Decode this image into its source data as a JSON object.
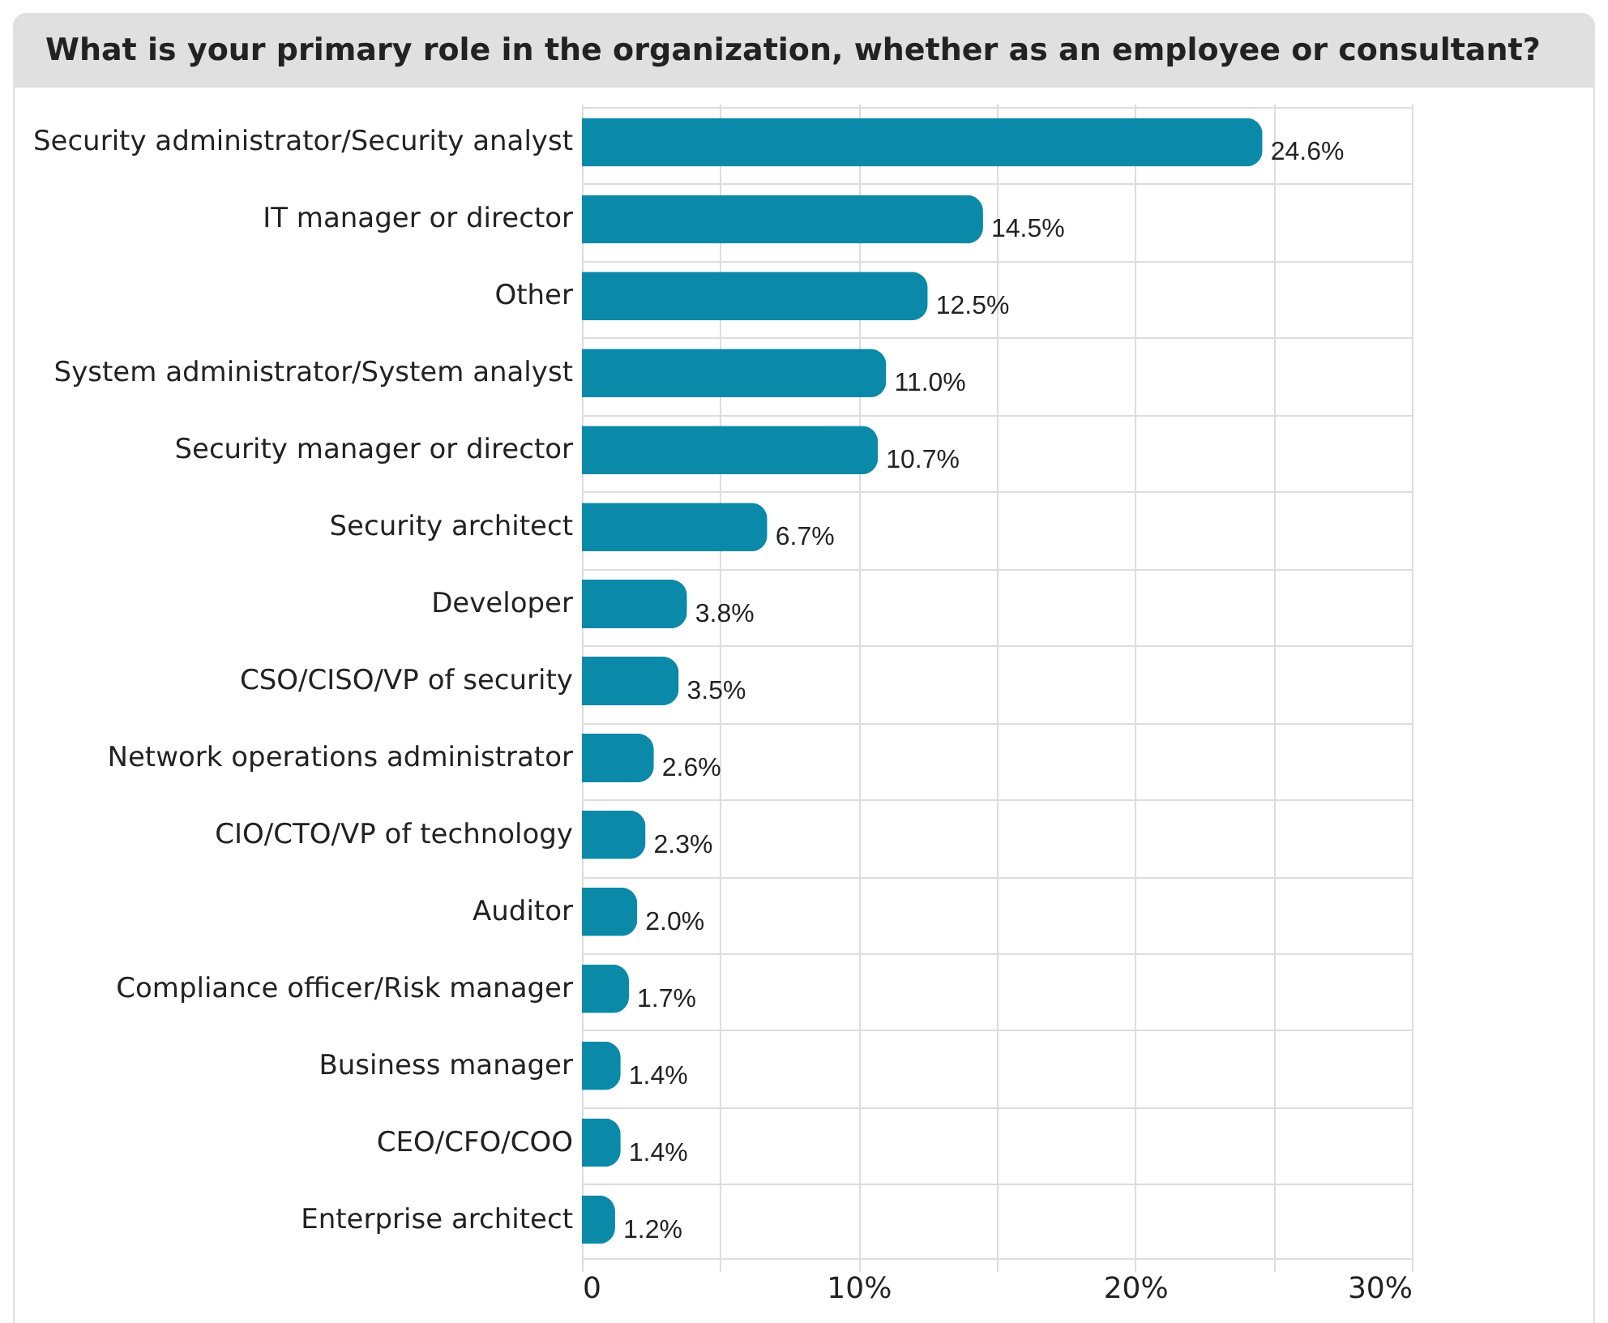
{
  "chart_data": {
    "type": "bar",
    "orientation": "horizontal",
    "title": "What is your primary role in the organization, whether as an employee or consultant?",
    "categories": [
      "Security administrator/Security analyst",
      "IT manager or director",
      "Other",
      "System administrator/System analyst",
      "Security manager or director",
      "Security architect",
      "Developer",
      "CSO/CISO/VP of security",
      "Network operations administrator",
      "CIO/CTO/VP of technology",
      "Auditor",
      "Compliance officer/Risk manager",
      "Business manager",
      "CEO/CFO/COO",
      "Enterprise architect"
    ],
    "values": [
      24.6,
      14.5,
      12.5,
      11.0,
      10.7,
      6.7,
      3.8,
      3.5,
      2.6,
      2.3,
      2.0,
      1.7,
      1.4,
      1.4,
      1.2
    ],
    "value_labels": [
      "24.6%",
      "14.5%",
      "12.5%",
      "11.0%",
      "10.7%",
      "6.7%",
      "3.8%",
      "3.5%",
      "2.6%",
      "2.3%",
      "2.0%",
      "1.7%",
      "1.4%",
      "1.4%",
      "1.2%"
    ],
    "color": "#0a8aa8",
    "xlim": [
      0,
      30
    ],
    "xticks": [
      0,
      {
        "value": 5,
        "label": null
      },
      {
        "value": 10,
        "label": "10%"
      },
      {
        "value": 15,
        "label": null
      },
      {
        "value": 20,
        "label": "20%"
      },
      {
        "value": 25,
        "label": null
      },
      {
        "value": 30,
        "label": "30%"
      }
    ],
    "grid": true
  }
}
